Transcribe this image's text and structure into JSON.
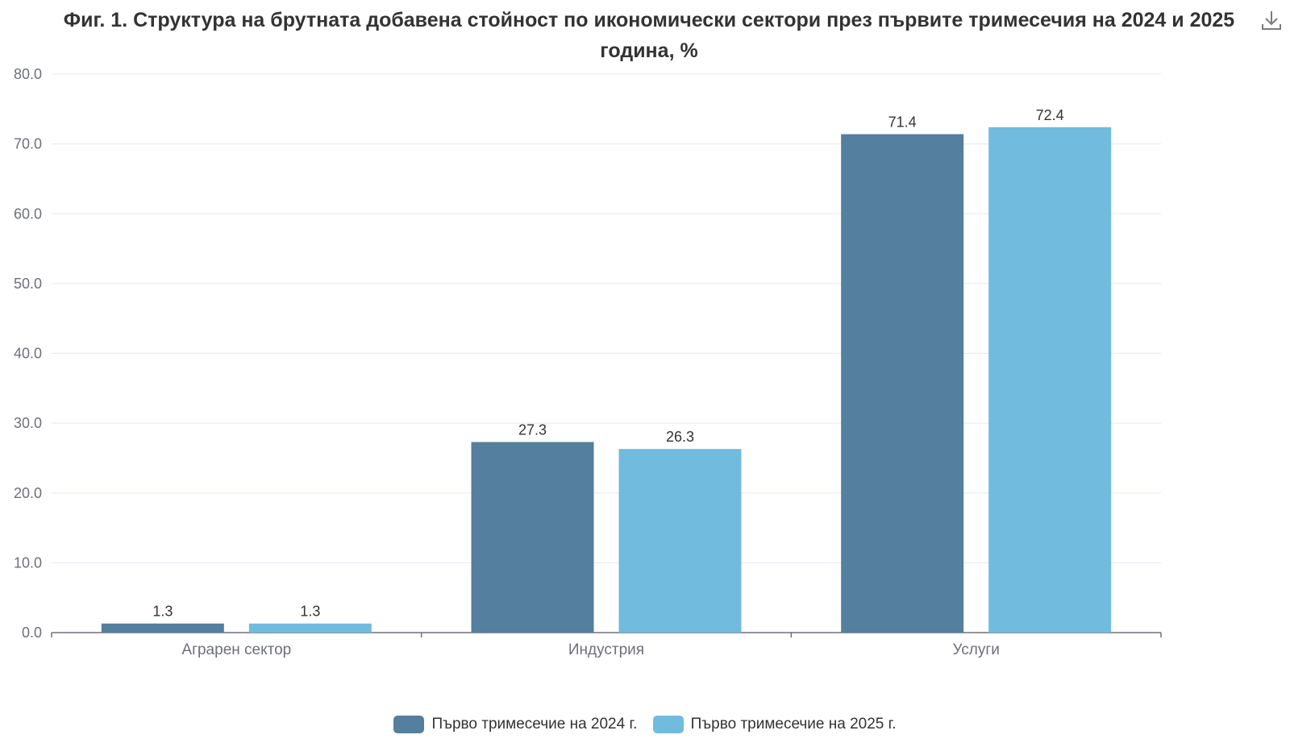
{
  "title": "Фиг. 1. Структура на брутната добавена стойност по икономически сектори през първите тримесечия на 2024 и 2025 година, %",
  "download_icon": "download-icon",
  "colors": {
    "series1": "#547f9e",
    "series2": "#71bbdf",
    "grid": "#e4e8f0",
    "axis": "#6e7079",
    "tick_text": "#6e7079",
    "label_text": "#333333"
  },
  "chart_data": {
    "type": "bar",
    "categories": [
      "Аграрен сектор",
      "Индустрия",
      "Услуги"
    ],
    "series": [
      {
        "name": "Първо тримесечие на 2024 г.",
        "values": [
          1.3,
          27.3,
          71.4
        ]
      },
      {
        "name": "Първо тримесечие на 2025 г.",
        "values": [
          1.3,
          26.3,
          72.4
        ]
      }
    ],
    "y_ticks": [
      "0.0",
      "10.0",
      "20.0",
      "30.0",
      "40.0",
      "50.0",
      "60.0",
      "70.0",
      "80.0"
    ],
    "ylim": [
      0,
      80
    ],
    "grid": true,
    "legend_position": "bottom-center"
  }
}
